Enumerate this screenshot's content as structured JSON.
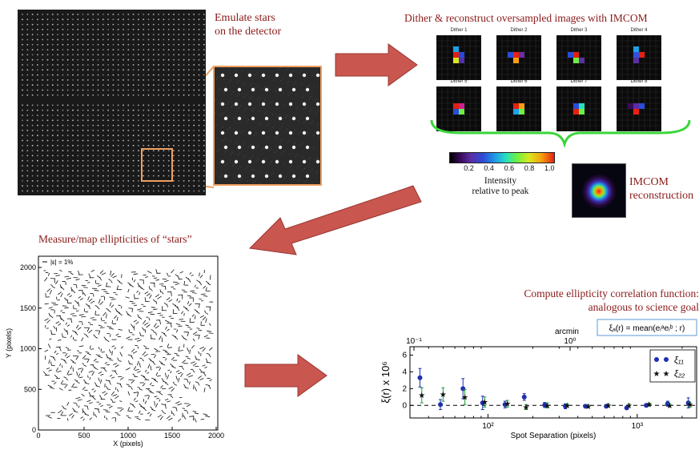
{
  "captions": {
    "emulate_line1": "Emulate stars",
    "emulate_line2": "on the detector",
    "dither": "Dither & reconstruct oversampled images with IMCOM",
    "imcom_line1": "IMCOM",
    "imcom_line2": "reconstruction",
    "measure": "Measure/map ellipticities of “stars”",
    "compute_line1": "Compute ellipticity correlation function:",
    "compute_line2": "analogous to science goal"
  },
  "dither_panels": [
    "Dither 1",
    "Dither 2",
    "Dither 3",
    "Dither 4",
    "Dither 5",
    "Dither 6",
    "Dither 7",
    "Dither 8"
  ],
  "colorbar": {
    "ticks": [
      "0.2",
      "0.4",
      "0.6",
      "0.8",
      "1.0"
    ],
    "label_line1": "Intensity",
    "label_line2": "relative to peak"
  },
  "ellipticity_map": {
    "legend": "|ε| = 1%",
    "xlabel": "X (pixels)",
    "ylabel": "Y (pixels)",
    "xticks": [
      "0",
      "500",
      "1000",
      "1500",
      "2000"
    ],
    "yticks": [
      "0",
      "500",
      "1000",
      "1500",
      "2000"
    ]
  },
  "chart_data": {
    "type": "scatter",
    "x_label": "Spot Separation (pixels)",
    "y_label": "ξ(r) x 10⁶",
    "top_axis_label": "arcmin",
    "x_scale": "log",
    "xlim": [
      30,
      2500
    ],
    "ylim": [
      -1.5,
      7
    ],
    "top_ticks": [
      "10⁻¹",
      "10⁰"
    ],
    "bottom_ticks": [
      "10²",
      "10³"
    ],
    "y_ticks": [
      "0",
      "2",
      "4",
      "6"
    ],
    "formula": "ξₐ(r) = mean(eᵢᵃeᵢᵇ ; r)",
    "legend_position": "top-right",
    "series": [
      {
        "name": "ξ₁₁",
        "marker": "circle",
        "color": "#1f2fb0",
        "x": [
          35,
          48,
          68,
          92,
          130,
          175,
          240,
          330,
          450,
          620,
          850,
          1150,
          1600,
          2200
        ],
        "y": [
          3.3,
          0.1,
          2.0,
          0.3,
          0.1,
          1.0,
          0.05,
          -0.1,
          -0.1,
          -0.1,
          -0.3,
          0.0,
          0.2,
          0.3
        ],
        "err": [
          1.1,
          0.6,
          1.2,
          0.8,
          0.4,
          0.4,
          0.3,
          0.3,
          0.2,
          0.2,
          0.2,
          0.2,
          0.3,
          0.6
        ]
      },
      {
        "name": "ξ₂₂",
        "marker": "star",
        "color": "#111111",
        "x": [
          36,
          50,
          70,
          95,
          135,
          180,
          250,
          340,
          470,
          640,
          880,
          1200,
          1650,
          2250
        ],
        "y": [
          1.2,
          1.3,
          1.0,
          0.4,
          0.2,
          -0.2,
          0.0,
          0.0,
          -0.1,
          0.0,
          0.0,
          0.1,
          0.0,
          0.1
        ],
        "err": [
          0.9,
          0.8,
          0.9,
          0.6,
          0.4,
          0.3,
          0.3,
          0.2,
          0.2,
          0.2,
          0.2,
          0.2,
          0.2,
          0.3
        ]
      }
    ]
  }
}
